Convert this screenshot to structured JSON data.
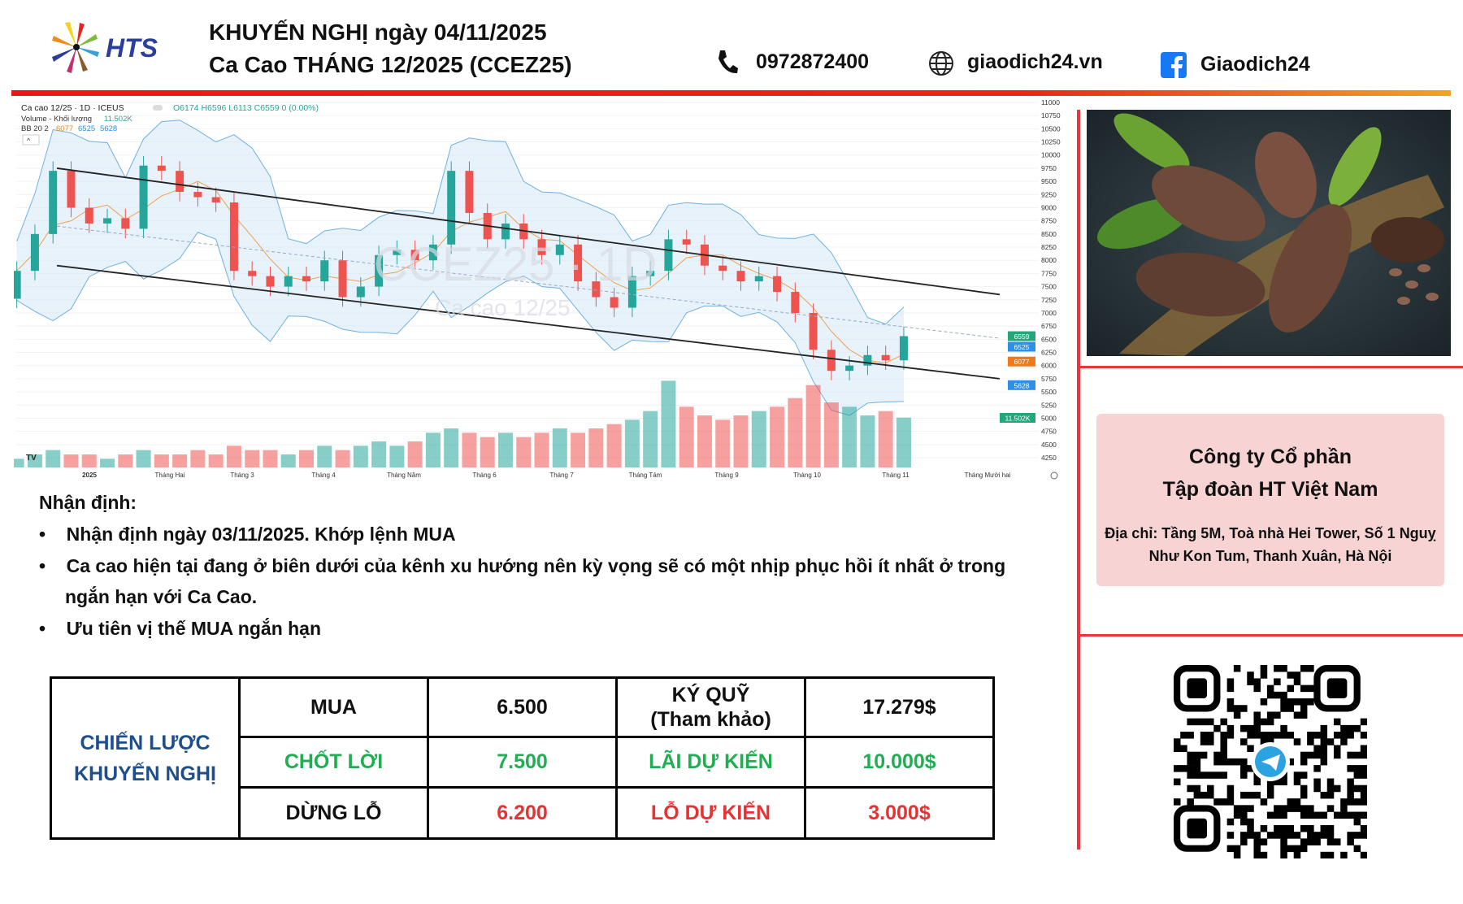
{
  "header": {
    "logo_text": "HTS",
    "title_line1": "KHUYẾN NGHỊ ngày 04/11/2025",
    "title_line2": "Ca Cao THÁNG 12/2025 (CCEZ25)",
    "phone": "0972872400",
    "website": "giaodich24.vn",
    "facebook": "Giaodich24",
    "icons": [
      "phone-icon",
      "globe-icon",
      "facebook-icon"
    ]
  },
  "chart_data": {
    "type": "candlestick",
    "symbol_line": "Ca cao 12/25 · 1D · ICEUS",
    "ohlc_label": "O6174 H6596 L6113 C6559 0 (0.00%)",
    "volume_label": "Volume - Khối lượng",
    "volume_value": "11.502K",
    "bb_label": "BB 20 2",
    "bb_values": [
      "6077",
      "6525",
      "5628"
    ],
    "watermark": "CCEZ25 · 1D",
    "watermark_sub": "Ca cao 12/25",
    "ylim": [
      4250,
      11000
    ],
    "y_ticks": [
      "11000",
      "10750",
      "10500",
      "10250",
      "10000",
      "9750",
      "9500",
      "9250",
      "9000",
      "8750",
      "8500",
      "8250",
      "8000",
      "7750",
      "7500",
      "7250",
      "7000",
      "6750",
      "6500",
      "6250",
      "6000",
      "5750",
      "5500",
      "5250",
      "5000",
      "4750",
      "4500",
      "4250"
    ],
    "x_ticks": [
      "2025",
      "Tháng Hai",
      "Tháng 3",
      "Tháng 4",
      "Tháng Năm",
      "Tháng 6",
      "Tháng 7",
      "Tháng Tám",
      "Tháng 9",
      "Tháng 10",
      "Tháng 11",
      "Tháng Mười hai"
    ],
    "price_badges": [
      {
        "v": "6559",
        "color": "#22a67a"
      },
      {
        "v": "6525",
        "color": "#2f8fe6"
      },
      {
        "v": "6077",
        "color": "#f07a1a"
      },
      {
        "v": "5628",
        "color": "#2f8fe6"
      }
    ],
    "volume_badge": {
      "v": "11.502K",
      "color": "#22a67a"
    },
    "up_color": "#26a69a",
    "down_color": "#ef5350",
    "weekly_close": [
      7800,
      8500,
      9700,
      9000,
      8700,
      8800,
      8600,
      9800,
      9700,
      9300,
      9200,
      9100,
      7800,
      7700,
      7500,
      7700,
      7600,
      8000,
      7300,
      7500,
      8100,
      8200,
      8000,
      8300,
      9700,
      8900,
      8400,
      8700,
      8400,
      8100,
      8300,
      7600,
      7300,
      7100,
      7700,
      7800,
      8400,
      8300,
      7900,
      7800,
      7600,
      7700,
      7400,
      7000,
      6300,
      5900,
      6000,
      6200,
      6100,
      6559
    ],
    "weekly_open_first": 7270,
    "weekly_volume_k": [
      2,
      3,
      4,
      3,
      3,
      2,
      3,
      4,
      3,
      3,
      4,
      3,
      5,
      4,
      4,
      3,
      4,
      5,
      4,
      5,
      6,
      5,
      6,
      8,
      9,
      8,
      7,
      8,
      7,
      8,
      9,
      8,
      9,
      10,
      11,
      13,
      20,
      14,
      12,
      11,
      12,
      13,
      14,
      16,
      19,
      15,
      14,
      12,
      13,
      11.502
    ],
    "trend_lines": [
      {
        "name": "upper-channel",
        "from": 9750,
        "to": 7350
      },
      {
        "name": "lower-channel",
        "from": 7900,
        "to": 5750
      },
      {
        "name": "mid-dashed",
        "from": 8650,
        "to": 6520
      }
    ]
  },
  "analysis": {
    "heading": "Nhận định:",
    "bullets": [
      "Nhận định ngày 03/11/2025. Khớp lệnh MUA",
      "Ca cao hiện tại đang ở biên dưới của kênh xu hướng nên kỳ vọng sẽ có một nhịp phục hồi ít nhất ở trong ngắn hạn với Ca Cao.",
      "Ưu tiên vị thế MUA ngắn hạn"
    ]
  },
  "strategy": {
    "label": "CHIẾN LƯỢC KHUYẾN NGHỊ",
    "rows": [
      [
        "MUA",
        "6.500",
        "KÝ QUỸ\n(Tham khảo)",
        "17.279$"
      ],
      [
        "CHỐT LỜI",
        "7.500",
        "LÃI DỰ KIẾN",
        "10.000$"
      ],
      [
        "DỪNG LỖ",
        "6.200",
        "LỖ DỰ KIẾN",
        "3.000$"
      ]
    ]
  },
  "company": {
    "name1": "Công ty Cổ phần",
    "name2": "Tập đoàn HT Việt Nam",
    "address": "Địa chỉ: Tầng 5M, Toà nhà Hei Tower, Số 1 Nguỵ Như Kon Tum, Thanh Xuân, Hà Nội"
  },
  "colors": {
    "green": "#1fae52",
    "red": "#e63232",
    "blue": "#1f4e8c",
    "pink": "#f7d3d4"
  }
}
